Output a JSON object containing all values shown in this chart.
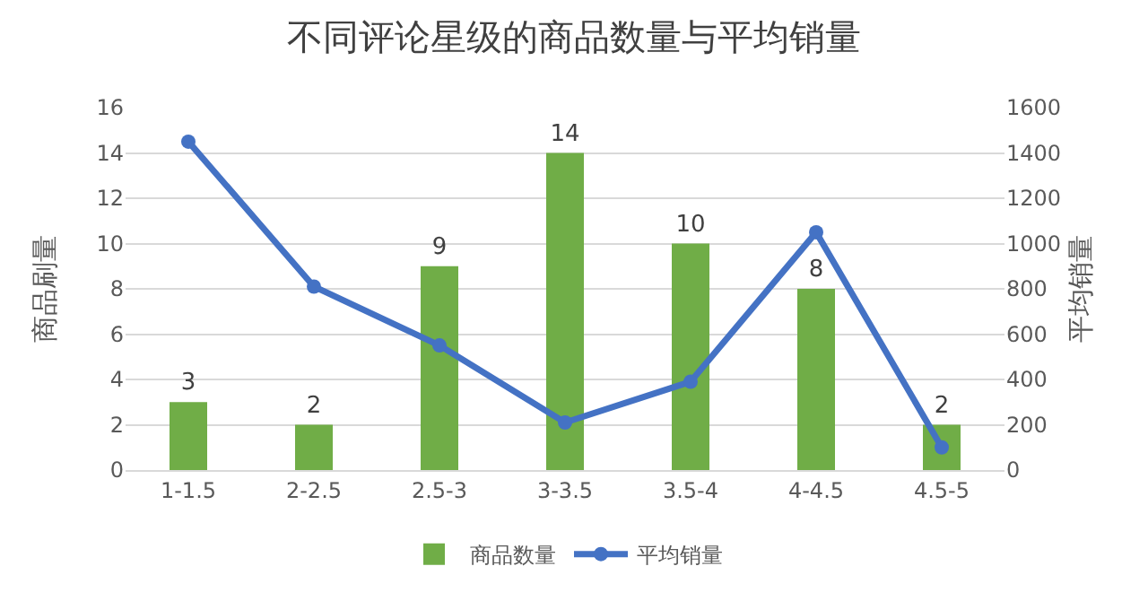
{
  "chart_data": {
    "type": "bar",
    "title": "不同评论星级的商品数量与平均销量",
    "ylabel": "商品刷量",
    "y2label": "平均销量",
    "categories": [
      "1-1.5",
      "2-2.5",
      "2.5-3",
      "3-3.5",
      "3.5-4",
      "4-4.5",
      "4.5-5"
    ],
    "series": [
      {
        "name": "商品数量",
        "color": "#70ad47",
        "values": [
          3,
          2,
          9,
          14,
          10,
          8,
          2
        ],
        "value_labels": [
          "3",
          "2",
          "9",
          "14",
          "10",
          "8",
          "2"
        ]
      },
      {
        "name": "平均销量",
        "type": "line",
        "axis": "y2",
        "color": "#4472c4",
        "marker": "circle",
        "values": [
          1450,
          810,
          550,
          210,
          390,
          1050,
          100
        ]
      }
    ],
    "ylim": [
      0,
      16
    ],
    "yticks": [
      0,
      2,
      4,
      6,
      8,
      10,
      12,
      14,
      16
    ],
    "y2lim": [
      0,
      1600
    ],
    "y2ticks": [
      0,
      200,
      400,
      600,
      800,
      1000,
      1200,
      1400,
      1600
    ],
    "grid": "y",
    "legend": "bottom"
  }
}
